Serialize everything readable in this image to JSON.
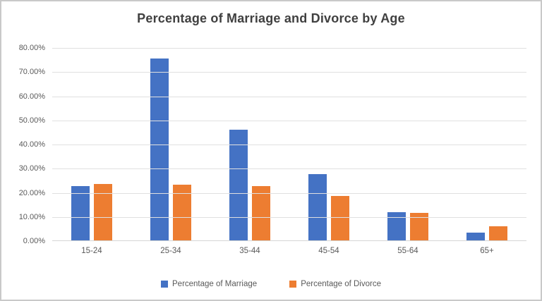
{
  "title": "Percentage of Marriage and Divorce by Age",
  "chart_data": {
    "type": "bar",
    "title": "Percentage of Marriage and Divorce by Age",
    "categories": [
      "15-24",
      "25-34",
      "35-44",
      "45-54",
      "55-64",
      "65+"
    ],
    "series": [
      {
        "name": "Percentage of Marriage",
        "color": "#4472C4",
        "values": [
          22.9,
          75.5,
          46.0,
          27.7,
          12.1,
          3.5
        ]
      },
      {
        "name": "Percentage of Divorce",
        "color": "#ED7D31",
        "values": [
          23.7,
          23.4,
          22.9,
          18.8,
          11.8,
          6.1
        ]
      }
    ],
    "xlabel": "",
    "ylabel": "",
    "ylim": [
      0,
      80
    ],
    "ytick_step": 10,
    "ytick_labels": [
      "0.00%",
      "10.00%",
      "20.00%",
      "30.00%",
      "40.00%",
      "50.00%",
      "60.00%",
      "70.00%",
      "80.00%"
    ],
    "grid": true,
    "legend_position": "bottom"
  },
  "colors": {
    "gridline": "#e0e0e0",
    "axis_line": "#d6d6d6",
    "axis_text": "#595959",
    "title_text": "#404040",
    "frame_border": "#c9c9c9"
  }
}
